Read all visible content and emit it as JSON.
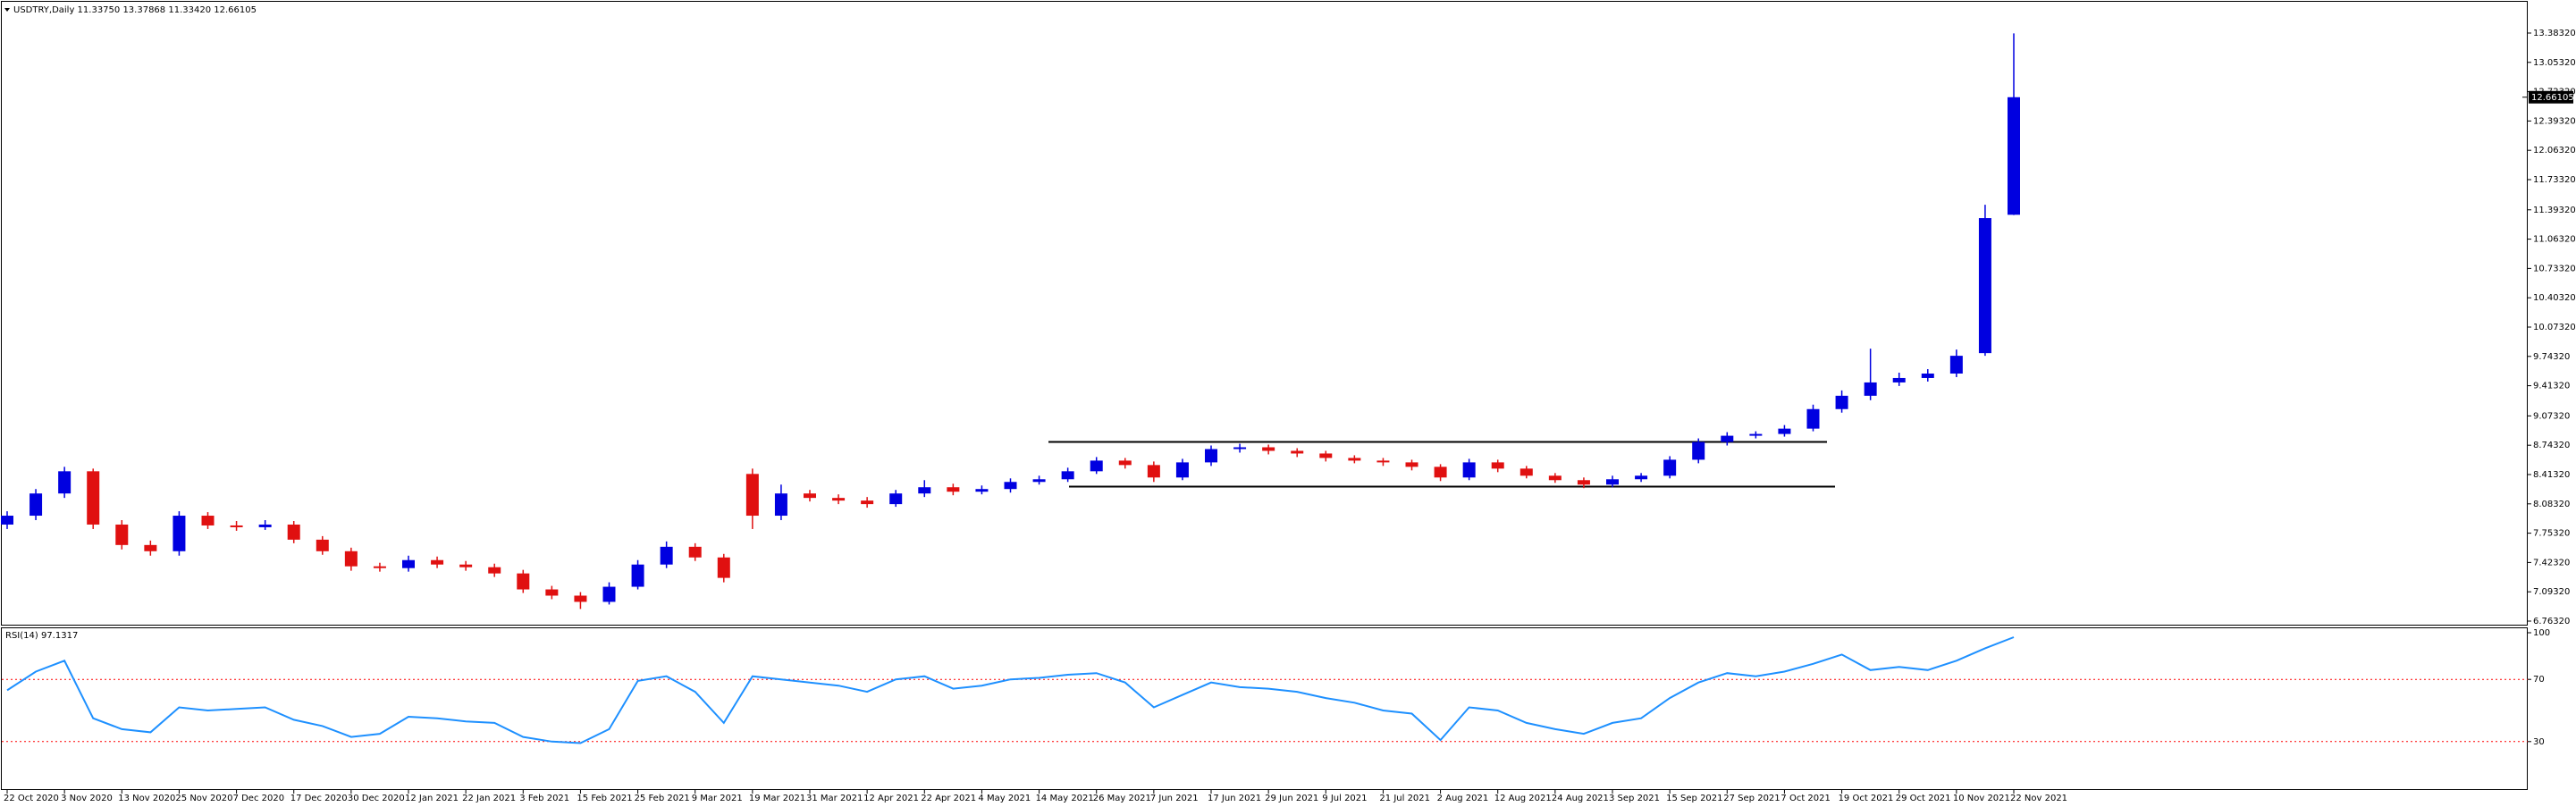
{
  "chart_data": [
    {
      "type": "candlestick",
      "title": "USDTRY,Daily  11.33750 13.37868 11.33420 12.66105",
      "categories": [
        "22 Oct 2020",
        null,
        "3 Nov 2020",
        null,
        "13 Nov 2020",
        null,
        "25 Nov 2020",
        null,
        "7 Dec 2020",
        null,
        "17 Dec 2020",
        null,
        "30 Dec 2020",
        null,
        "12 Jan 2021",
        null,
        "22 Jan 2021",
        null,
        "3 Feb 2021",
        null,
        "15 Feb 2021",
        null,
        "25 Feb 2021",
        null,
        "9 Mar 2021",
        null,
        "19 Mar 2021",
        null,
        "31 Mar 2021",
        null,
        "12 Apr 2021",
        null,
        "22 Apr 2021",
        null,
        "4 May 2021",
        null,
        "14 May 2021",
        null,
        "26 May 2021",
        null,
        "7 Jun 2021",
        null,
        "17 Jun 2021",
        null,
        "29 Jun 2021",
        null,
        "9 Jul 2021",
        null,
        "21 Jul 2021",
        null,
        "2 Aug 2021",
        null,
        "12 Aug 2021",
        null,
        "24 Aug 2021",
        null,
        "3 Sep 2021",
        null,
        "15 Sep 2021",
        null,
        "27 Sep 2021",
        null,
        "7 Oct 2021",
        null,
        "19 Oct 2021",
        null,
        "29 Oct 2021",
        null,
        "10 Nov 2021",
        null,
        "22 Nov 2021"
      ],
      "open": [
        7.85,
        7.95,
        8.2,
        8.45,
        7.85,
        7.62,
        7.55,
        7.95,
        7.84,
        7.82,
        7.85,
        7.68,
        7.55,
        7.38,
        7.36,
        7.45,
        7.4,
        7.37,
        7.3,
        7.12,
        7.05,
        6.98,
        7.15,
        7.4,
        7.6,
        7.48,
        8.42,
        7.95,
        8.2,
        8.15,
        8.12,
        8.08,
        8.2,
        8.27,
        8.22,
        8.25,
        8.33,
        8.36,
        8.45,
        8.57,
        8.52,
        8.38,
        8.55,
        8.7,
        8.72,
        8.68,
        8.65,
        8.6,
        8.57,
        8.55,
        8.5,
        8.38,
        8.55,
        8.48,
        8.4,
        8.35,
        8.3,
        8.36,
        8.4,
        8.58,
        8.78,
        8.85,
        8.87,
        8.93,
        9.15,
        9.3,
        9.45,
        9.5,
        9.55,
        9.78,
        11.3375
      ],
      "high": [
        8.0,
        8.25,
        8.5,
        8.48,
        7.9,
        7.67,
        8.0,
        7.99,
        7.89,
        7.9,
        7.89,
        7.72,
        7.59,
        7.42,
        7.5,
        7.49,
        7.44,
        7.41,
        7.34,
        7.16,
        7.09,
        7.2,
        7.45,
        7.66,
        7.64,
        7.52,
        8.48,
        8.3,
        8.24,
        8.19,
        8.16,
        8.24,
        8.35,
        8.31,
        8.29,
        8.37,
        8.4,
        8.49,
        8.61,
        8.6,
        8.56,
        8.59,
        8.74,
        8.76,
        8.75,
        8.71,
        8.68,
        8.63,
        8.6,
        8.58,
        8.53,
        8.59,
        8.58,
        8.51,
        8.43,
        8.38,
        8.4,
        8.43,
        8.62,
        8.82,
        8.89,
        8.9,
        8.97,
        9.2,
        9.36,
        9.83,
        9.56,
        9.6,
        9.82,
        11.45,
        13.37868
      ],
      "low": [
        7.8,
        7.9,
        8.15,
        7.8,
        7.57,
        7.5,
        7.5,
        7.8,
        7.78,
        7.79,
        7.64,
        7.51,
        7.33,
        7.32,
        7.32,
        7.36,
        7.33,
        7.26,
        7.08,
        7.01,
        6.9,
        6.95,
        7.12,
        7.36,
        7.44,
        7.2,
        7.8,
        7.9,
        8.11,
        8.08,
        8.04,
        8.05,
        8.16,
        8.18,
        8.19,
        8.21,
        8.3,
        8.33,
        8.42,
        8.48,
        8.33,
        8.35,
        8.51,
        8.66,
        8.64,
        8.61,
        8.56,
        8.54,
        8.51,
        8.46,
        8.34,
        8.35,
        8.44,
        8.37,
        8.32,
        8.26,
        8.27,
        8.33,
        8.37,
        8.54,
        8.74,
        8.82,
        8.84,
        8.9,
        9.11,
        9.25,
        9.41,
        9.46,
        9.51,
        9.75,
        11.3342
      ],
      "close": [
        7.95,
        8.2,
        8.45,
        7.85,
        7.62,
        7.55,
        7.95,
        7.84,
        7.82,
        7.85,
        7.68,
        7.55,
        7.38,
        7.36,
        7.45,
        7.4,
        7.37,
        7.3,
        7.12,
        7.05,
        6.98,
        7.15,
        7.4,
        7.6,
        7.48,
        7.25,
        7.95,
        8.2,
        8.15,
        8.12,
        8.08,
        8.2,
        8.27,
        8.22,
        8.25,
        8.33,
        8.36,
        8.45,
        8.57,
        8.52,
        8.38,
        8.55,
        8.7,
        8.72,
        8.68,
        8.65,
        8.6,
        8.57,
        8.55,
        8.5,
        8.38,
        8.55,
        8.48,
        8.4,
        8.35,
        8.3,
        8.36,
        8.4,
        8.58,
        8.78,
        8.85,
        8.87,
        8.93,
        9.15,
        9.3,
        9.45,
        9.5,
        9.55,
        9.75,
        11.3,
        12.66105
      ],
      "ylim": [
        6.733,
        13.715
      ],
      "yticks": [
        {
          "value": 13.3832,
          "label": "13.38320"
        },
        {
          "value": 13.0532,
          "label": "13.05320"
        },
        {
          "value": 12.7232,
          "label": "12.72320"
        },
        {
          "value": 12.3932,
          "label": "12.39320"
        },
        {
          "value": 12.0632,
          "label": "12.06320"
        },
        {
          "value": 11.7332,
          "label": "11.73320"
        },
        {
          "value": 11.3932,
          "label": "11.39320"
        },
        {
          "value": 11.0632,
          "label": "11.06320"
        },
        {
          "value": 10.7332,
          "label": "10.73320"
        },
        {
          "value": 10.4032,
          "label": "10.40320"
        },
        {
          "value": 10.0732,
          "label": "10.07320"
        },
        {
          "value": 9.7432,
          "label": "9.74320"
        },
        {
          "value": 9.4132,
          "label": "9.41320"
        },
        {
          "value": 9.0732,
          "label": "9.07320"
        },
        {
          "value": 8.7432,
          "label": "8.74320"
        },
        {
          "value": 8.4132,
          "label": "8.41320"
        },
        {
          "value": 8.0832,
          "label": "8.08320"
        },
        {
          "value": 7.7532,
          "label": "7.75320"
        },
        {
          "value": 7.4232,
          "label": "7.42320"
        },
        {
          "value": 7.0932,
          "label": "7.09320"
        },
        {
          "value": 6.7632,
          "label": "6.76320"
        }
      ],
      "up_color": "#0000e0",
      "down_color": "#e01010"
    },
    {
      "type": "line",
      "title": "RSI(14) 97.1317",
      "values": [
        63,
        75,
        82,
        45,
        38,
        36,
        52,
        50,
        51,
        52,
        44,
        40,
        33,
        35,
        46,
        45,
        43,
        42,
        33,
        30,
        29,
        38,
        69,
        72,
        62,
        42,
        72,
        70,
        68,
        66,
        62,
        70,
        72,
        64,
        66,
        70,
        71,
        73,
        74,
        68,
        52,
        60,
        68,
        65,
        64,
        62,
        58,
        55,
        50,
        48,
        31,
        52,
        50,
        42,
        38,
        35,
        42,
        45,
        58,
        68,
        74,
        72,
        75,
        80,
        86,
        76,
        78,
        76,
        82,
        90,
        97.1317
      ],
      "ylim": [
        0,
        100
      ],
      "yticks": [
        100,
        70,
        30
      ],
      "color": "#1e90ff",
      "level_color": "#ff0000"
    }
  ]
}
